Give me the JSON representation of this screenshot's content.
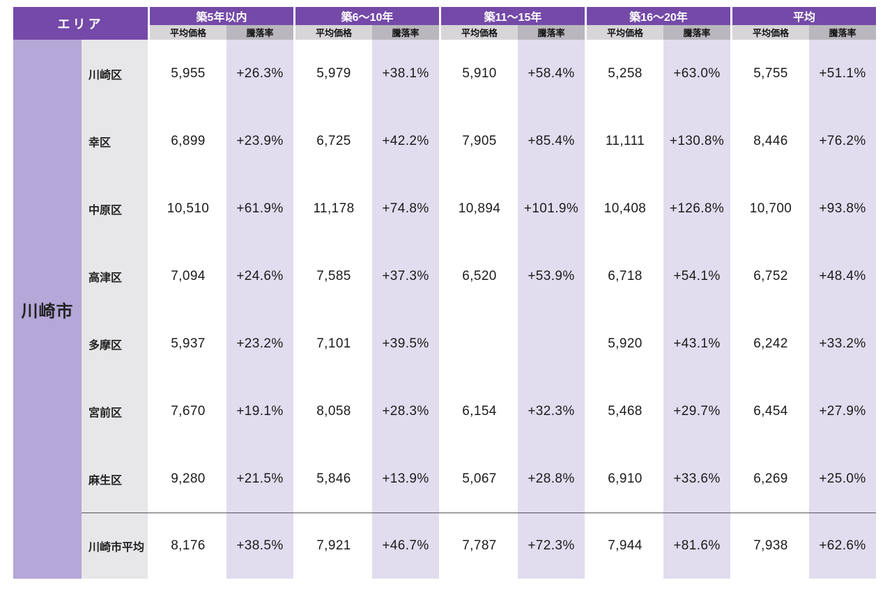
{
  "colors": {
    "header_purple": "#7449a8",
    "city_column_purple": "#b5a7d8",
    "ward_column_gray": "#e7e6e8",
    "price_subheader_gray": "#d7d5d8",
    "change_subheader_gray": "#b9b6bd",
    "change_column_lavender": "#e1dcee",
    "divider_gray": "#55525a",
    "text_dark": "#1b1b1b"
  },
  "chart_data": {
    "type": "table",
    "area_header": "エリア",
    "city_group": "川崎市",
    "column_groups": [
      {
        "label": "築5年以内"
      },
      {
        "label": "築6〜10年"
      },
      {
        "label": "築11〜15年"
      },
      {
        "label": "築16〜20年"
      },
      {
        "label": "平均"
      }
    ],
    "subcolumns": [
      "平均価格",
      "騰落率"
    ],
    "rows": [
      {
        "area": "川崎区",
        "values": [
          "5,955",
          "+26.3%",
          "5,979",
          "+38.1%",
          "5,910",
          "+58.4%",
          "5,258",
          "+63.0%",
          "5,755",
          "+51.1%"
        ]
      },
      {
        "area": "幸区",
        "values": [
          "6,899",
          "+23.9%",
          "6,725",
          "+42.2%",
          "7,905",
          "+85.4%",
          "11,111",
          "+130.8%",
          "8,446",
          "+76.2%"
        ]
      },
      {
        "area": "中原区",
        "values": [
          "10,510",
          "+61.9%",
          "11,178",
          "+74.8%",
          "10,894",
          "+101.9%",
          "10,408",
          "+126.8%",
          "10,700",
          "+93.8%"
        ]
      },
      {
        "area": "高津区",
        "values": [
          "7,094",
          "+24.6%",
          "7,585",
          "+37.3%",
          "6,520",
          "+53.9%",
          "6,718",
          "+54.1%",
          "6,752",
          "+48.4%"
        ]
      },
      {
        "area": "多摩区",
        "values": [
          "5,937",
          "+23.2%",
          "7,101",
          "+39.5%",
          "",
          "",
          "5,920",
          "+43.1%",
          "6,242",
          "+33.2%"
        ]
      },
      {
        "area": "宮前区",
        "values": [
          "7,670",
          "+19.1%",
          "8,058",
          "+28.3%",
          "6,154",
          "+32.3%",
          "5,468",
          "+29.7%",
          "6,454",
          "+27.9%"
        ]
      },
      {
        "area": "麻生区",
        "values": [
          "9,280",
          "+21.5%",
          "5,846",
          "+13.9%",
          "5,067",
          "+28.8%",
          "6,910",
          "+33.6%",
          "6,269",
          "+25.0%"
        ]
      },
      {
        "area": "川崎市平均",
        "values": [
          "8,176",
          "+38.5%",
          "7,921",
          "+46.7%",
          "7,787",
          "+72.3%",
          "7,944",
          "+81.6%",
          "7,938",
          "+62.6%"
        ]
      }
    ]
  }
}
